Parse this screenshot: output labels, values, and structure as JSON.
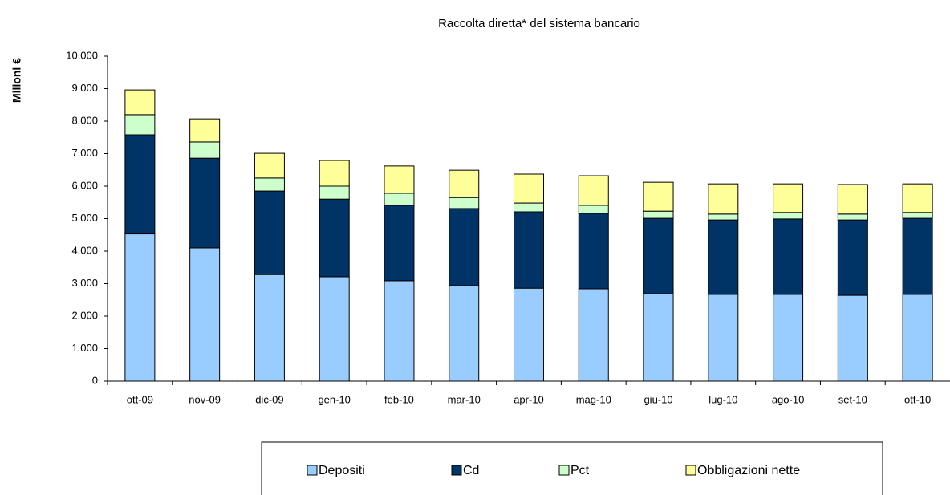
{
  "chart_data": {
    "type": "stacked_bar",
    "title": "Raccolta diretta* del sistema bancario",
    "y_label": "Milioni  €",
    "categories": [
      "ott-09",
      "nov-09",
      "dic-09",
      "gen-10",
      "feb-10",
      "mar-10",
      "apr-10",
      "mag-10",
      "giu-10",
      "lug-10",
      "ago-10",
      "set-10",
      "ott-10"
    ],
    "series": [
      {
        "name": "Depositi",
        "color": "#99ccff",
        "values": [
          4530,
          4100,
          3280,
          3210,
          3090,
          2940,
          2860,
          2840,
          2690,
          2670,
          2670,
          2640,
          2670
        ]
      },
      {
        "name": "Cd",
        "color": "#003366",
        "values": [
          3050,
          2760,
          2570,
          2390,
          2320,
          2370,
          2350,
          2320,
          2320,
          2290,
          2320,
          2320,
          2340
        ]
      },
      {
        "name": "Pct",
        "color": "#ccffcc",
        "values": [
          620,
          500,
          400,
          400,
          370,
          340,
          270,
          250,
          220,
          180,
          200,
          180,
          180
        ]
      },
      {
        "name": "Obbligazioni nette",
        "color": "#ffff99",
        "values": [
          760,
          710,
          760,
          790,
          840,
          840,
          890,
          910,
          890,
          930,
          880,
          910,
          880
        ]
      }
    ],
    "ylim": [
      0,
      10000
    ],
    "yticks": [
      0,
      {
        "value": 1000,
        "label": "1.000"
      },
      {
        "value": 2000,
        "label": "2.000"
      },
      {
        "value": 3000,
        "label": "3.000"
      },
      {
        "value": 4000,
        "label": "4.000"
      },
      {
        "value": 5000,
        "label": "5.000"
      },
      {
        "value": 6000,
        "label": "6.000"
      },
      {
        "value": 7000,
        "label": "7.000"
      },
      {
        "value": 8000,
        "label": "8.000"
      },
      {
        "value": 9000,
        "label": "9.000"
      },
      {
        "value": 10000,
        "label": "10.000"
      }
    ],
    "grid": false,
    "legend": "bottom"
  }
}
